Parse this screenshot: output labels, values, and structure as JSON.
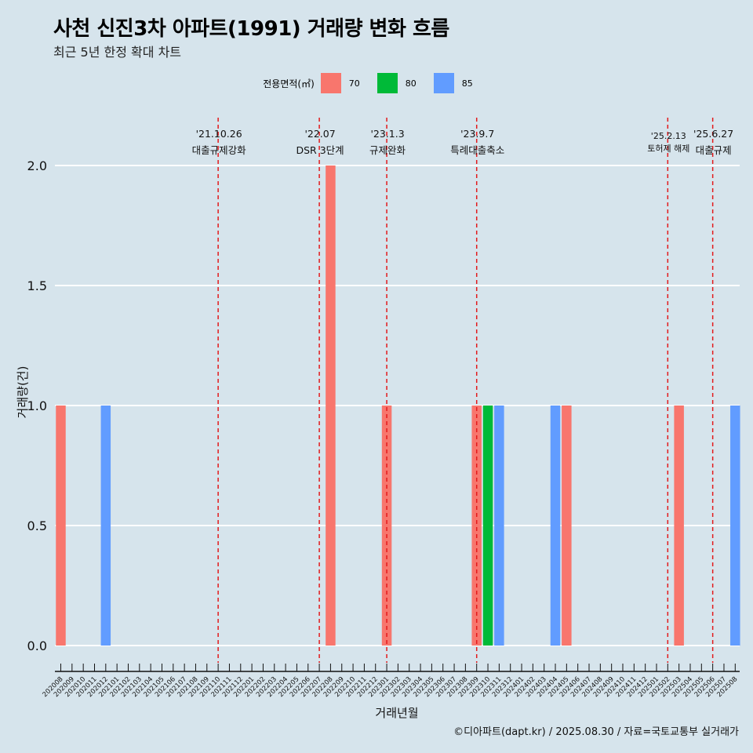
{
  "title": "사천 신진3차 아파트(1991) 거래량 변화 흐름",
  "subtitle": "최근 5년 한정 확대 차트",
  "caption": "©디아파트(dapt.kr) / 2025.08.30 / 자료=국토교통부 실거래가",
  "legend": {
    "title": "전용면적(㎡)",
    "items": [
      {
        "label": "70",
        "color": "#f8766d"
      },
      {
        "label": "80",
        "color": "#00ba38"
      },
      {
        "label": "85",
        "color": "#619cff"
      }
    ]
  },
  "chart_data": {
    "type": "bar",
    "xlabel": "거래년월",
    "ylabel": "거래량(건)",
    "ylim": [
      0,
      2
    ],
    "yticks": [
      "0.0",
      "0.5",
      "1.0",
      "1.5",
      "2.0"
    ],
    "grid": true,
    "legend_position": "top",
    "categories": [
      "202008",
      "202009",
      "202010",
      "202011",
      "202012",
      "202101",
      "202102",
      "202103",
      "202104",
      "202105",
      "202106",
      "202107",
      "202108",
      "202109",
      "202110",
      "202111",
      "202112",
      "202201",
      "202202",
      "202203",
      "202204",
      "202205",
      "202206",
      "202207",
      "202208",
      "202209",
      "202210",
      "202211",
      "202212",
      "202301",
      "202302",
      "202303",
      "202304",
      "202305",
      "202306",
      "202307",
      "202308",
      "202309",
      "202310",
      "202311",
      "202312",
      "202401",
      "202402",
      "202403",
      "202404",
      "202405",
      "202406",
      "202407",
      "202408",
      "202409",
      "202410",
      "202411",
      "202412",
      "202501",
      "202502",
      "202503",
      "202504",
      "202505",
      "202506",
      "202507",
      "202508"
    ],
    "bars": [
      {
        "x": "202008",
        "series": "70",
        "value": 1
      },
      {
        "x": "202012",
        "series": "85",
        "value": 1
      },
      {
        "x": "202208",
        "series": "70",
        "value": 2
      },
      {
        "x": "202301",
        "series": "70",
        "value": 1
      },
      {
        "x": "202309",
        "series": "70",
        "value": 1
      },
      {
        "x": "202310",
        "series": "80",
        "value": 1
      },
      {
        "x": "202311",
        "series": "85",
        "value": 1
      },
      {
        "x": "202404",
        "series": "85",
        "value": 1
      },
      {
        "x": "202405",
        "series": "70",
        "value": 1
      },
      {
        "x": "202503",
        "series": "70",
        "value": 1
      },
      {
        "x": "202508",
        "series": "85",
        "value": 1
      }
    ],
    "events": [
      {
        "x": "202110",
        "date": "'21.10.26",
        "text": "대출규제강화"
      },
      {
        "x": "202207",
        "date": "'22.07",
        "text": "DSR 3단계"
      },
      {
        "x": "202301",
        "date": "'23.1.3",
        "text": "규제완화"
      },
      {
        "x": "202309",
        "date": "'23.9.7",
        "text": "특례대출축소"
      },
      {
        "x": "202502",
        "date": "'25.2.13",
        "text": "토허제 해제"
      },
      {
        "x": "202506",
        "date": "'25.6.27",
        "text": "대출규제"
      }
    ]
  }
}
